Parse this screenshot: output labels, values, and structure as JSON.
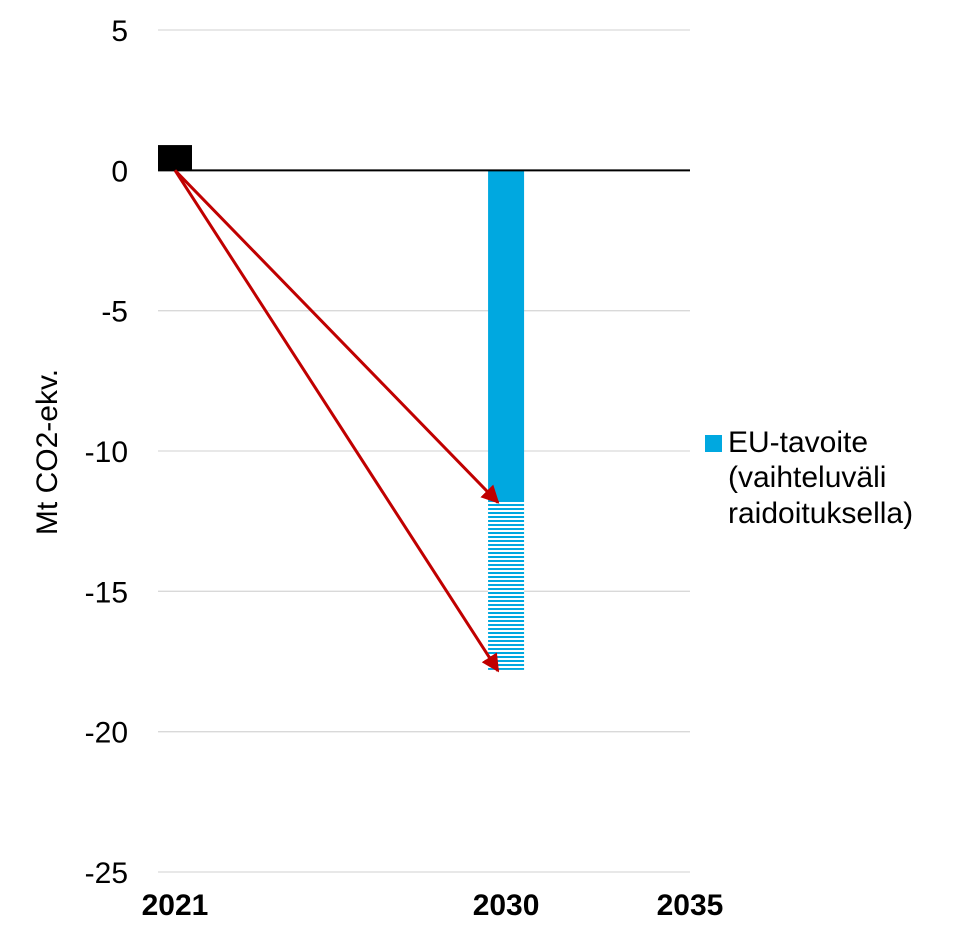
{
  "chart_data": {
    "type": "bar",
    "ylabel": "Mt CO2-ekv.",
    "ylim": [
      -25,
      5
    ],
    "y_ticks": [
      5,
      0,
      -5,
      -10,
      -15,
      -20,
      -25
    ],
    "y_tick_labels": [
      "5",
      "0",
      "-5",
      "-10",
      "-15",
      "-20",
      "-25"
    ],
    "x_range": [
      2021,
      2035
    ],
    "x_ticks": [
      2021,
      2030,
      2035
    ],
    "x_tick_labels": [
      "2021",
      "2030",
      "2035"
    ],
    "grid": true,
    "legend_position": "right",
    "series": [
      {
        "name": "EU-tavoite (vaihteluväli raidoituksella)",
        "color": "#00a8e0",
        "x": 2030,
        "value_solid": -11.8,
        "range_striped": [
          -11.8,
          -17.8
        ]
      }
    ],
    "baseline_marker": {
      "x": 2021,
      "value": 0.9,
      "color": "#000000"
    },
    "arrows": [
      {
        "from": [
          2021,
          0
        ],
        "to": [
          2030,
          -11.8
        ],
        "color": "#c00000"
      },
      {
        "from": [
          2021,
          0
        ],
        "to": [
          2030,
          -17.8
        ],
        "color": "#c00000"
      }
    ],
    "legend": {
      "lines": [
        "EU-tavoite",
        "(vaihteluväli",
        "raidoituksella)"
      ]
    }
  }
}
